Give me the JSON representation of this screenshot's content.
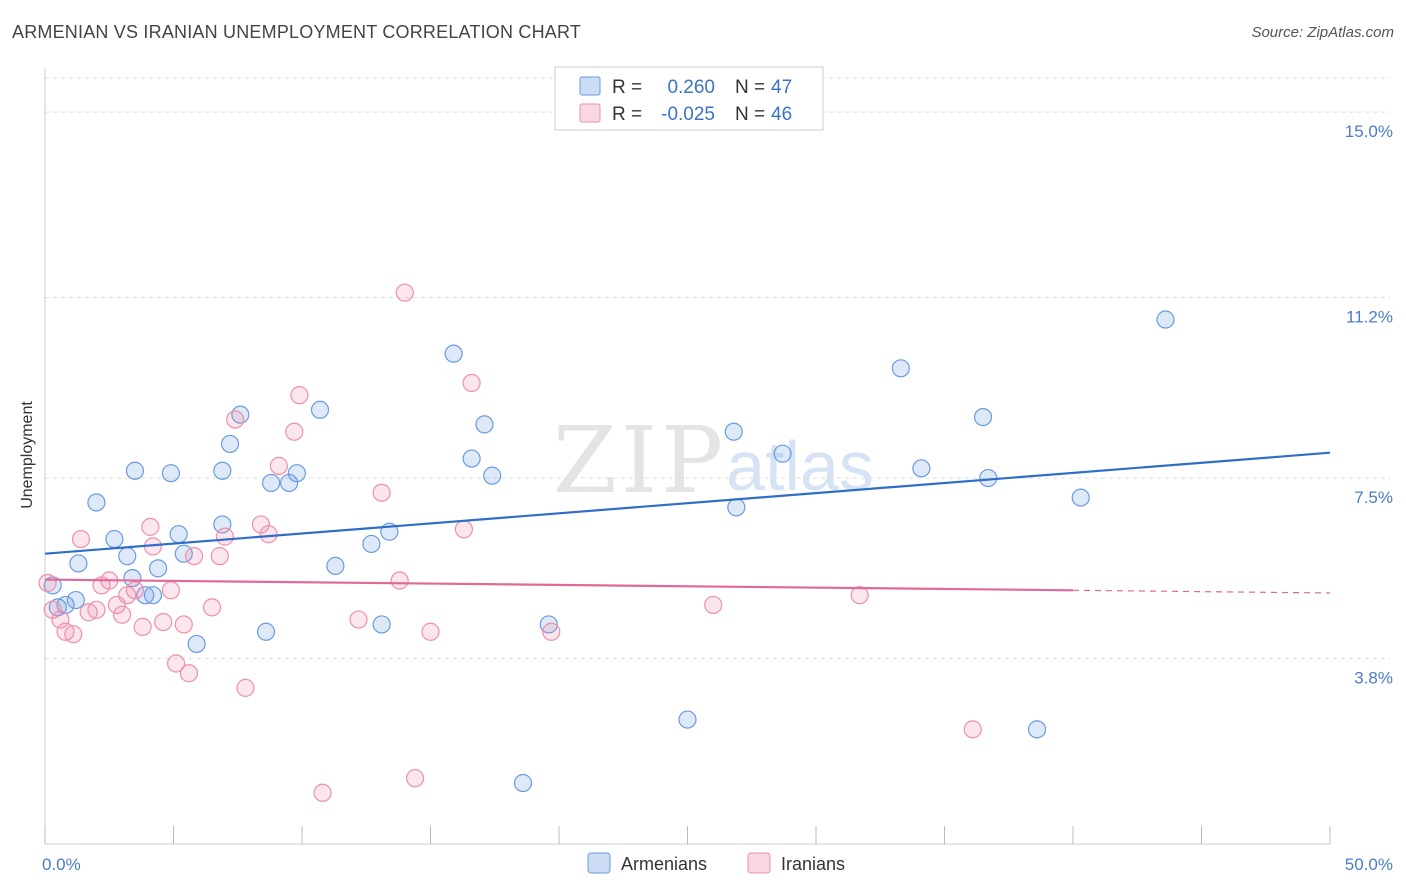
{
  "header": {
    "title": "ARMENIAN VS IRANIAN UNEMPLOYMENT CORRELATION CHART",
    "source": "Source: ZipAtlas.com"
  },
  "watermark": {
    "zip": "ZIP",
    "atlas": "atlas"
  },
  "legend_top": {
    "r_label": "R =",
    "n_label": "N =",
    "rows": [
      {
        "r": "0.260",
        "n": "47",
        "color": "#6a9be0"
      },
      {
        "r": "-0.025",
        "n": "46",
        "color": "#ef8fad"
      }
    ]
  },
  "legend_bottom": {
    "items": [
      {
        "label": "Armenians",
        "color": "#6a9be0"
      },
      {
        "label": "Iranians",
        "color": "#ef8fad"
      }
    ]
  },
  "chart_data": {
    "type": "scatter",
    "title": "ARMENIAN VS IRANIAN UNEMPLOYMENT CORRELATION CHART",
    "xlabel": "",
    "ylabel": "Unemployment",
    "xlim": [
      0,
      50
    ],
    "ylim": [
      0,
      15.7
    ],
    "x_tick_labels": [
      "0.0%",
      "50.0%"
    ],
    "y_ticks": [
      {
        "value": 3.8,
        "label": "3.8%"
      },
      {
        "value": 7.5,
        "label": "7.5%"
      },
      {
        "value": 11.2,
        "label": "11.2%"
      },
      {
        "value": 15.0,
        "label": "15.0%"
      }
    ],
    "grid": "horizontal dashed",
    "legend_position": "top-center",
    "series": [
      {
        "name": "Armenians",
        "color": "#6a9be0",
        "trend": {
          "x": [
            0,
            50
          ],
          "y": [
            5.95,
            8.02
          ]
        },
        "points": [
          [
            0.3,
            5.3
          ],
          [
            0.5,
            4.85
          ],
          [
            0.8,
            4.9
          ],
          [
            1.2,
            5.0
          ],
          [
            1.3,
            5.75
          ],
          [
            2.0,
            7.0
          ],
          [
            2.7,
            6.25
          ],
          [
            3.2,
            5.9
          ],
          [
            3.4,
            5.45
          ],
          [
            3.5,
            7.65
          ],
          [
            3.9,
            5.1
          ],
          [
            4.2,
            5.1
          ],
          [
            4.4,
            5.65
          ],
          [
            4.9,
            7.6
          ],
          [
            5.2,
            6.35
          ],
          [
            5.4,
            5.95
          ],
          [
            5.9,
            4.1
          ],
          [
            6.9,
            7.65
          ],
          [
            6.9,
            6.55
          ],
          [
            7.2,
            8.2
          ],
          [
            7.6,
            8.8
          ],
          [
            8.6,
            4.35
          ],
          [
            8.8,
            7.4
          ],
          [
            9.5,
            7.4
          ],
          [
            9.8,
            7.6
          ],
          [
            10.7,
            8.9
          ],
          [
            11.3,
            5.7
          ],
          [
            12.7,
            6.15
          ],
          [
            13.1,
            4.5
          ],
          [
            13.4,
            6.4
          ],
          [
            15.9,
            10.05
          ],
          [
            16.6,
            7.9
          ],
          [
            17.1,
            8.6
          ],
          [
            17.4,
            7.55
          ],
          [
            18.6,
            1.25
          ],
          [
            19.6,
            4.5
          ],
          [
            25.0,
            2.55
          ],
          [
            26.8,
            8.45
          ],
          [
            26.9,
            6.9
          ],
          [
            28.7,
            8.0
          ],
          [
            33.3,
            9.75
          ],
          [
            34.1,
            7.7
          ],
          [
            36.5,
            8.75
          ],
          [
            36.7,
            7.5
          ],
          [
            40.3,
            7.1
          ],
          [
            43.6,
            10.75
          ],
          [
            38.6,
            2.35
          ]
        ]
      },
      {
        "name": "Iranians",
        "color": "#ef8fad",
        "trend": {
          "x": [
            0,
            40
          ],
          "y": [
            5.42,
            5.2
          ]
        },
        "points": [
          [
            0.1,
            5.35
          ],
          [
            0.3,
            4.8
          ],
          [
            0.6,
            4.6
          ],
          [
            0.8,
            4.35
          ],
          [
            1.1,
            4.3
          ],
          [
            1.4,
            6.25
          ],
          [
            1.7,
            4.75
          ],
          [
            2.0,
            4.8
          ],
          [
            2.2,
            5.3
          ],
          [
            2.5,
            5.4
          ],
          [
            2.8,
            4.9
          ],
          [
            3.0,
            4.7
          ],
          [
            3.2,
            5.1
          ],
          [
            3.5,
            5.2
          ],
          [
            3.8,
            4.45
          ],
          [
            4.2,
            6.1
          ],
          [
            4.1,
            6.5
          ],
          [
            4.6,
            4.55
          ],
          [
            4.9,
            5.2
          ],
          [
            5.1,
            3.7
          ],
          [
            5.4,
            4.5
          ],
          [
            5.6,
            3.5
          ],
          [
            5.8,
            5.9
          ],
          [
            6.5,
            4.85
          ],
          [
            6.8,
            5.9
          ],
          [
            7.0,
            6.3
          ],
          [
            7.4,
            8.7
          ],
          [
            7.8,
            3.2
          ],
          [
            8.4,
            6.55
          ],
          [
            8.7,
            6.35
          ],
          [
            9.1,
            7.75
          ],
          [
            9.7,
            8.45
          ],
          [
            9.9,
            9.2
          ],
          [
            10.8,
            1.05
          ],
          [
            12.2,
            4.6
          ],
          [
            13.1,
            7.2
          ],
          [
            13.8,
            5.4
          ],
          [
            14.0,
            11.3
          ],
          [
            14.4,
            1.35
          ],
          [
            15.0,
            4.35
          ],
          [
            16.3,
            6.45
          ],
          [
            16.6,
            9.45
          ],
          [
            19.7,
            4.35
          ],
          [
            26.0,
            4.9
          ],
          [
            31.7,
            5.1
          ],
          [
            36.1,
            2.35
          ]
        ]
      }
    ]
  }
}
